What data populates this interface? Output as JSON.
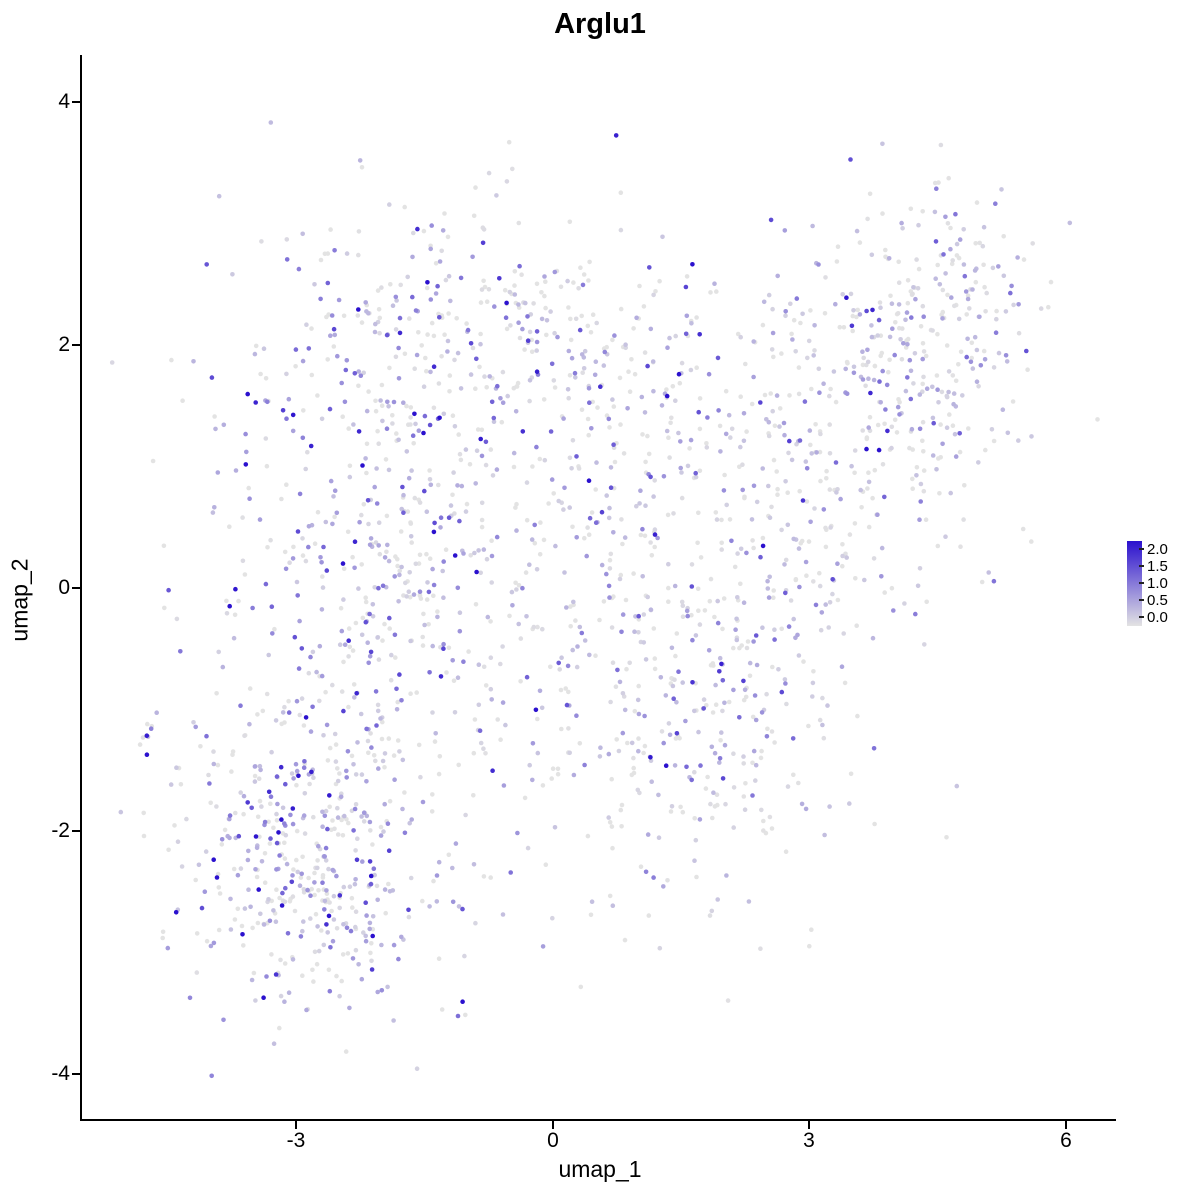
{
  "chart_data": {
    "type": "scatter",
    "title": "Arglu1",
    "xlabel": "umap_1",
    "ylabel": "umap_2",
    "xlim": [
      -5.5,
      6.6
    ],
    "ylim": [
      -4.4,
      4.4
    ],
    "grid": false,
    "legend_position": "right",
    "x_ticks": [
      "-3",
      "0",
      "3",
      "6"
    ],
    "x_tick_values": [
      -3,
      0,
      3,
      6
    ],
    "y_ticks": [
      "4",
      "2",
      "0",
      "-2",
      "-4"
    ],
    "y_tick_values": [
      4,
      2,
      0,
      -2,
      -4
    ],
    "legend": {
      "ticks": [
        "2.0",
        "1.5",
        "1.0",
        "0.5",
        "0.0"
      ],
      "values": [
        2.0,
        1.5,
        1.0,
        0.5,
        0.0
      ],
      "high_color": "#2B11CE",
      "low_color": "#E3E3E3"
    },
    "point_generation": {
      "seed": 20240613,
      "point_radius": 2.3,
      "value_max": 2,
      "zero_fraction": 0.32,
      "value_mean": 0.6,
      "clusters": [
        {
          "cx": -2.9,
          "cy": -2.25,
          "sx": 0.75,
          "sy": 0.62,
          "n": 430,
          "e": 1.0
        },
        {
          "cx": -2.0,
          "cy": 0.3,
          "sx": 1.05,
          "sy": 1.15,
          "n": 520,
          "e": 1.0
        },
        {
          "cx": -0.9,
          "cy": 2.2,
          "sx": 1.15,
          "sy": 0.45,
          "n": 230,
          "e": 1.0
        },
        {
          "cx": 0.6,
          "cy": -0.5,
          "sx": 1.25,
          "sy": 1.0,
          "n": 260,
          "e": 0.9
        },
        {
          "cx": 1.8,
          "cy": -1.4,
          "sx": 0.8,
          "sy": 0.7,
          "n": 140,
          "e": 0.8
        },
        {
          "cx": 1.0,
          "cy": 1.2,
          "sx": 1.0,
          "sy": 0.8,
          "n": 180,
          "e": 0.9
        },
        {
          "cx": 2.6,
          "cy": 0.4,
          "sx": 0.9,
          "sy": 0.9,
          "n": 170,
          "e": 0.85
        },
        {
          "cx": 3.6,
          "cy": 1.5,
          "sx": 0.95,
          "sy": 0.8,
          "n": 230,
          "e": 0.8
        },
        {
          "cx": 4.6,
          "cy": 2.3,
          "sx": 0.55,
          "sy": 0.5,
          "n": 180,
          "e": 0.6
        },
        {
          "cx": -4.65,
          "cy": -1.3,
          "sx": 0.1,
          "sy": 0.17,
          "n": 7,
          "e": 0.9
        }
      ]
    }
  }
}
